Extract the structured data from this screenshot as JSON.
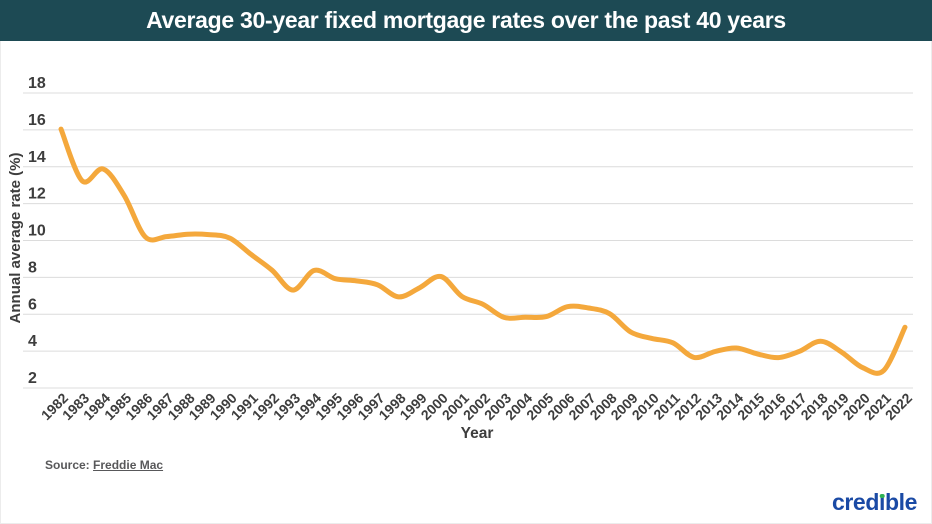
{
  "header": {
    "title": "Average 30-year fixed mortgage rates over the past 40 years"
  },
  "footer": {
    "source_label": "Source:",
    "source_link": "Freddie Mac",
    "brand": "credible"
  },
  "colors": {
    "header_bg": "#1d4a54",
    "title_text": "#ffffff",
    "line": "#f4a83c",
    "grid": "#dcdcdc",
    "axis_text": "#3d3d3d",
    "source_text": "#58585a",
    "brand_blue": "#1a4aa5",
    "brand_green": "#2eb254"
  },
  "chart_data": {
    "type": "line",
    "title": "Average 30-year fixed mortgage rates over the past 40 years",
    "xlabel": "Year",
    "ylabel": "Annual average rate (%)",
    "ylim": [
      2,
      18
    ],
    "yticks": [
      2,
      4,
      6,
      8,
      10,
      12,
      14,
      16,
      18
    ],
    "grid": true,
    "legend": false,
    "line_color": "#f4a83c",
    "x": [
      1982,
      1983,
      1984,
      1985,
      1986,
      1987,
      1988,
      1989,
      1990,
      1991,
      1992,
      1993,
      1994,
      1995,
      1996,
      1997,
      1998,
      1999,
      2000,
      2001,
      2002,
      2003,
      2004,
      2005,
      2006,
      2007,
      2008,
      2009,
      2010,
      2011,
      2012,
      2013,
      2014,
      2015,
      2016,
      2017,
      2018,
      2019,
      2020,
      2021,
      2022
    ],
    "y": [
      16.04,
      13.24,
      13.88,
      12.43,
      10.19,
      10.21,
      10.34,
      10.32,
      10.13,
      9.25,
      8.39,
      7.31,
      8.38,
      7.93,
      7.81,
      7.6,
      6.94,
      7.44,
      8.05,
      6.97,
      6.54,
      5.83,
      5.84,
      5.87,
      6.41,
      6.34,
      6.03,
      5.04,
      4.69,
      4.45,
      3.66,
      3.98,
      4.17,
      3.85,
      3.65,
      3.99,
      4.54,
      3.94,
      3.1,
      2.96,
      5.3
    ]
  }
}
